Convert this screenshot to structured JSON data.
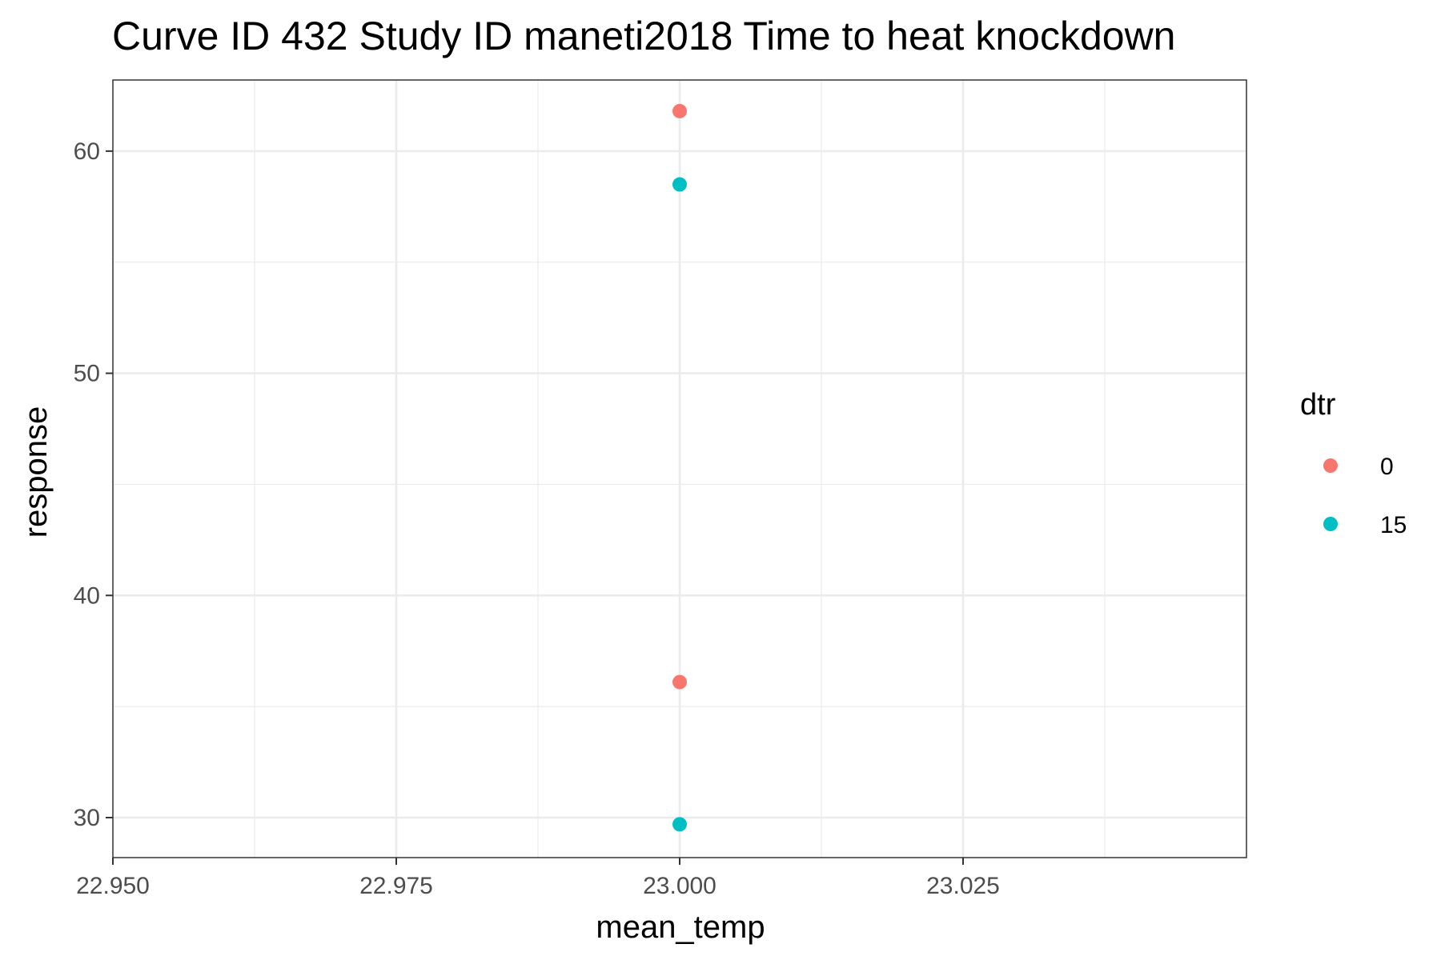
{
  "chart_data": {
    "type": "scatter",
    "title": "Curve ID 432 Study ID maneti2018 Time to heat knockdown",
    "xlabel": "mean_temp",
    "ylabel": "response",
    "xlim": [
      22.95,
      23.05
    ],
    "ylim": [
      28.2,
      63.2
    ],
    "x_ticks": [
      22.95,
      22.975,
      23.0,
      23.025
    ],
    "x_tick_labels": [
      "22.950",
      "22.975",
      "23.000",
      "23.025"
    ],
    "y_ticks": [
      30,
      40,
      50,
      60
    ],
    "y_tick_labels": [
      "30",
      "40",
      "50",
      "60"
    ],
    "grid": true,
    "legend": {
      "title": "dtr",
      "placement": "right"
    },
    "series": [
      {
        "name": "0",
        "color": "#F8766D",
        "points": [
          {
            "x": 23.0,
            "y": 61.8
          },
          {
            "x": 23.0,
            "y": 36.1
          }
        ]
      },
      {
        "name": "15",
        "color": "#00BFC4",
        "points": [
          {
            "x": 23.0,
            "y": 58.5
          },
          {
            "x": 23.0,
            "y": 29.7
          }
        ]
      }
    ]
  }
}
